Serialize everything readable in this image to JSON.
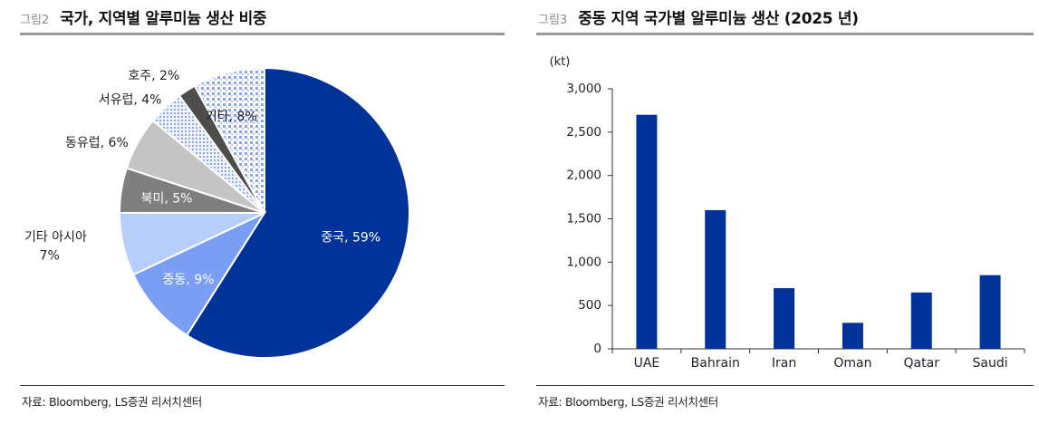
{
  "left": {
    "fig_num": "그림2",
    "title": "국가, 지역별 알루미늄 생산 비중",
    "source": "자료: Bloomberg, LS증권 리서치센터"
  },
  "right": {
    "fig_num": "그림3",
    "title": "중동 지역 국가별 알루미늄 생산 (2025 년)",
    "source": "자료: Bloomberg, LS증권 리서치센터"
  },
  "chart_data": [
    {
      "type": "pie",
      "title": "국가, 지역별 알루미늄 생산 비중",
      "start": "12 o'clock, clockwise",
      "slices": [
        {
          "label": "중국, 59%",
          "value": 59,
          "color": "#00339a",
          "pattern": "solid",
          "label_color": "#ffffff"
        },
        {
          "label": "중동, 9%",
          "value": 9,
          "color": "#7b9ef5",
          "pattern": "solid",
          "label_color": "#ffffff"
        },
        {
          "label": "기타 아시아, 7%",
          "value": 7,
          "color": "#b7cdfa",
          "pattern": "solid",
          "label_color": "#222222"
        },
        {
          "label": "북미, 5%",
          "value": 5,
          "color": "#7f7f7f",
          "pattern": "solid",
          "label_color": "#ffffff"
        },
        {
          "label": "동유럽, 6%",
          "value": 6,
          "color": "#c4c4c4",
          "pattern": "solid",
          "label_color": "#222222"
        },
        {
          "label": "서유럽, 4%",
          "value": 4,
          "color": "#c9d7f3",
          "pattern": "dots",
          "label_color": "#222222"
        },
        {
          "label": "호주, 2%",
          "value": 2,
          "color": "#4d4d4d",
          "pattern": "solid",
          "label_color": "#222222"
        },
        {
          "label": "기타, 8%",
          "value": 8,
          "color": "#9bb5ea",
          "pattern": "checker",
          "label_color": "#222222"
        }
      ]
    },
    {
      "type": "bar",
      "title": "중동 지역 국가별 알루미늄 생산 (2025 년)",
      "ylabel": "(kt)",
      "ylim": [
        0,
        3000
      ],
      "yticks": [
        0,
        500,
        1000,
        1500,
        2000,
        2500,
        3000
      ],
      "ytick_labels": [
        "0",
        "500",
        "1,000",
        "1,500",
        "2,000",
        "2,500",
        "3,000"
      ],
      "categories": [
        "UAE",
        "Bahrain",
        "Iran",
        "Oman",
        "Qatar",
        "Saudi"
      ],
      "values": [
        2700,
        1600,
        700,
        300,
        650,
        850
      ],
      "bar_color": "#00339a",
      "grid": false
    }
  ]
}
